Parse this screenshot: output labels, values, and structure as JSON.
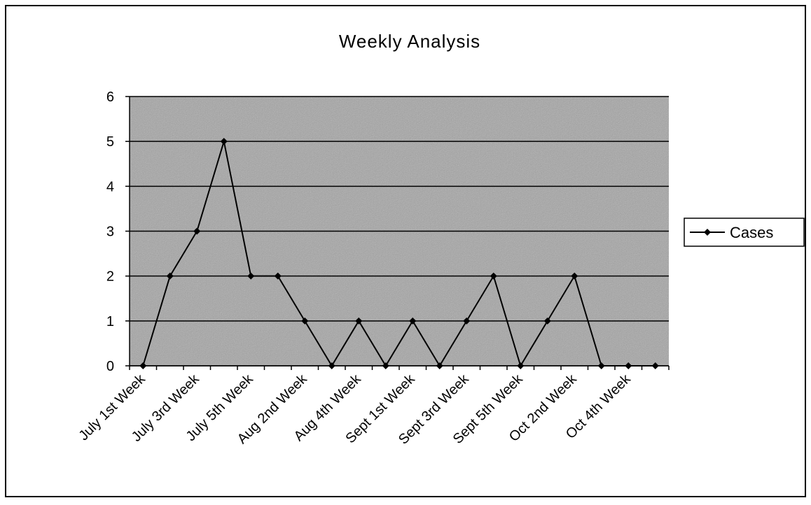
{
  "chart_data": {
    "type": "line",
    "title": "Weekly Analysis",
    "categories": [
      "July 1st Week",
      null,
      "July 3rd Week",
      null,
      "July 5th Week",
      null,
      "Aug 2nd Week",
      null,
      "Aug 4th Week",
      null,
      "Sept 1st Week",
      null,
      "Sept 3rd Week",
      null,
      "Sept 5th Week",
      null,
      "Oct 2nd Week",
      null,
      "Oct 4th Week",
      null
    ],
    "series": [
      {
        "name": "Cases",
        "color": "#000000",
        "values": [
          0,
          2,
          3,
          5,
          2,
          2,
          1,
          0,
          1,
          0,
          1,
          0,
          1,
          2,
          0,
          1,
          2,
          0,
          0,
          0
        ]
      }
    ],
    "ylim": [
      0,
      6
    ],
    "yticks": [
      0,
      1,
      2,
      3,
      4,
      5,
      6
    ],
    "grid": true,
    "legend": "right"
  }
}
